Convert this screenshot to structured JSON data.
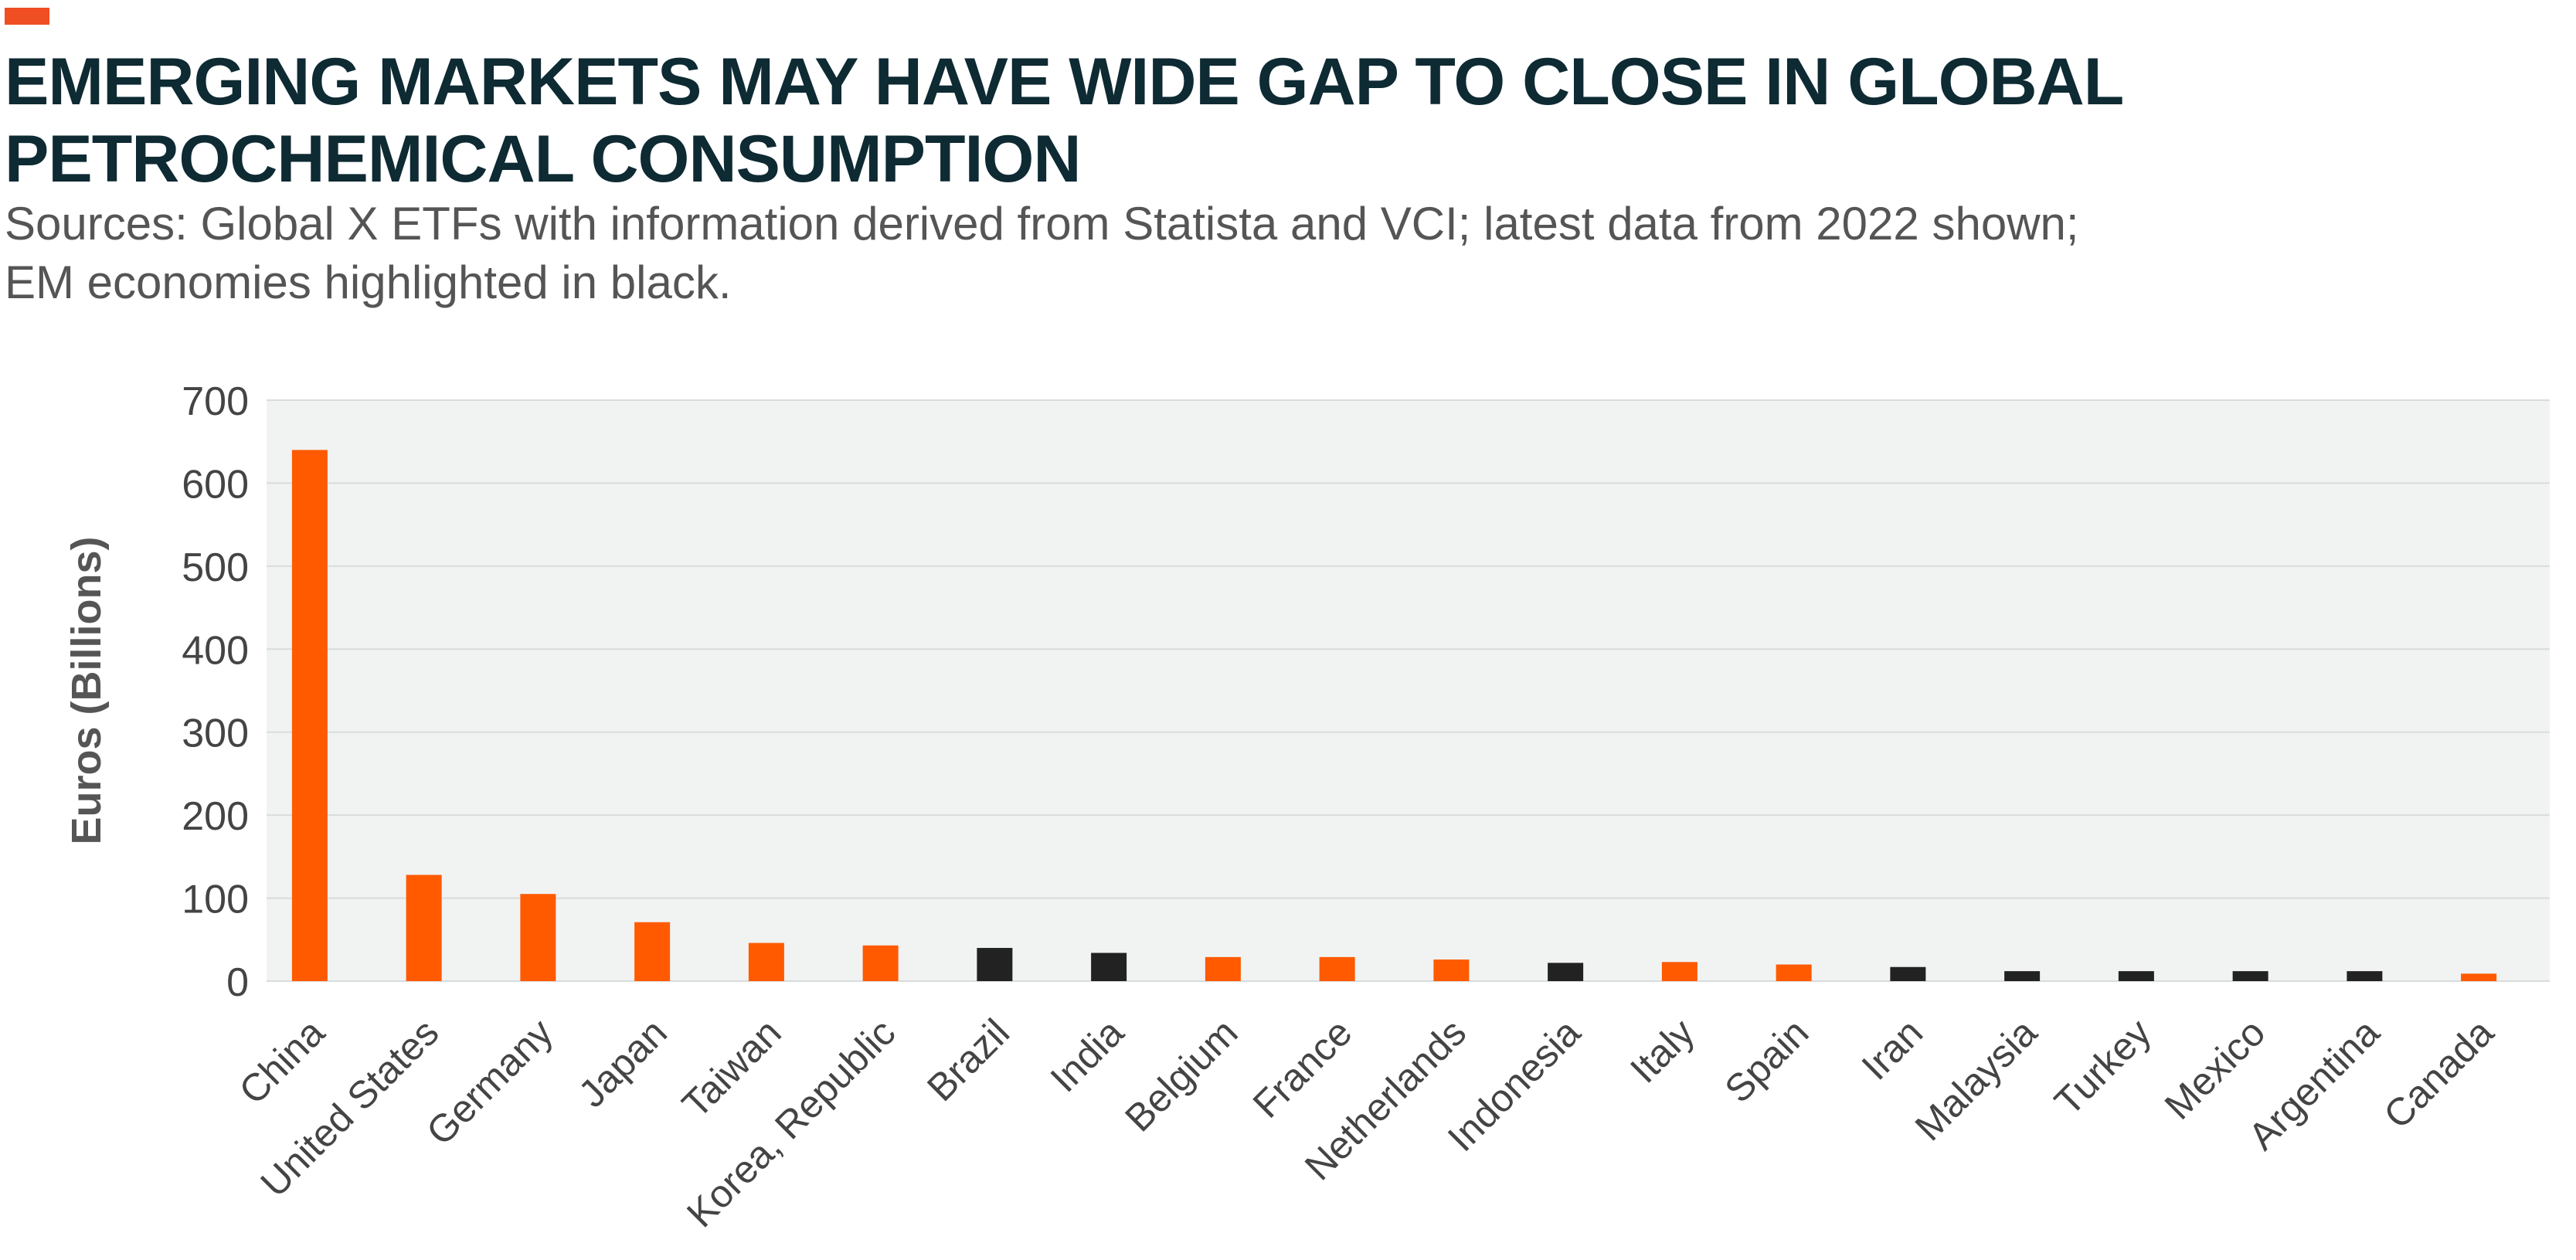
{
  "header": {
    "title_line1": "EMERGING MARKETS MAY HAVE WIDE GAP TO CLOSE IN GLOBAL",
    "title_line2": "PETROCHEMICAL CONSUMPTION",
    "subtitle_line1": "Sources: Global X ETFs with information derived from Statista and VCI; latest data from 2022 shown;",
    "subtitle_line2": "EM economies highlighted in black."
  },
  "colors": {
    "developed": "#ff5a00",
    "emerging": "#222222",
    "plot_background": "#f1f3f3",
    "gridline": "#d9dcdc",
    "accent": "#f04e23"
  },
  "chart_data": {
    "type": "bar",
    "title": "EMERGING MARKETS MAY HAVE WIDE GAP TO CLOSE IN GLOBAL PETROCHEMICAL CONSUMPTION",
    "xlabel": "",
    "ylabel": "Euros (Billions)",
    "ylim": [
      0,
      700
    ],
    "yticks": [
      0,
      100,
      200,
      300,
      400,
      500,
      600,
      700
    ],
    "grid": true,
    "categories": [
      "China",
      "United States",
      "Germany",
      "Japan",
      "Taiwan",
      "Korea, Republic",
      "Brazil",
      "India",
      "Belgium",
      "France",
      "Netherlands",
      "Indonesia",
      "Italy",
      "Spain",
      "Iran",
      "Malaysia",
      "Turkey",
      "Mexico",
      "Argentina",
      "Canada"
    ],
    "values": [
      640,
      128,
      105,
      71,
      46,
      43,
      40,
      34,
      29,
      29,
      26,
      22,
      23,
      20,
      17,
      12,
      12,
      12,
      12,
      9
    ],
    "emerging_market": [
      false,
      false,
      false,
      false,
      false,
      false,
      true,
      true,
      false,
      false,
      false,
      true,
      false,
      false,
      true,
      true,
      true,
      true,
      true,
      false
    ]
  }
}
